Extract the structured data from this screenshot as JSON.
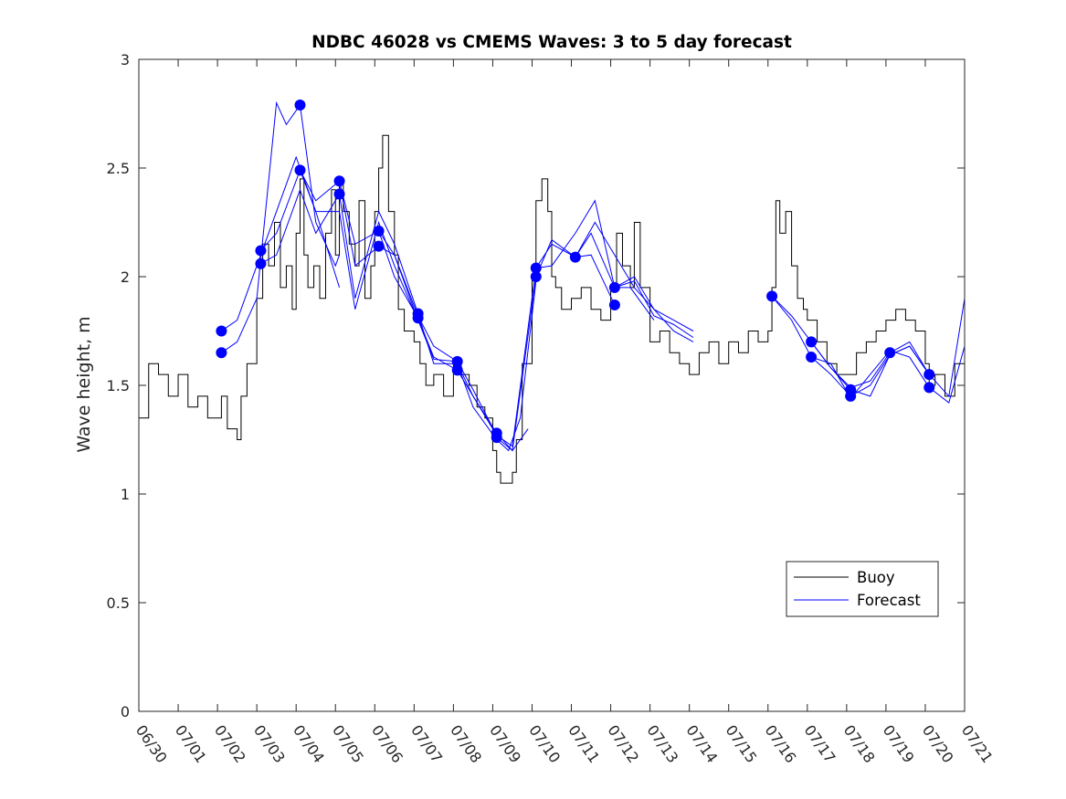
{
  "chart_data": {
    "type": "line",
    "title": "NDBC 46028 vs CMEMS Waves: 3 to 5 day forecast",
    "xlabel": "",
    "ylabel": "Wave height, m",
    "xlim": [
      "06/30",
      "07/21"
    ],
    "ylim": [
      0,
      3
    ],
    "x_ticks": [
      "06/30",
      "07/01",
      "07/02",
      "07/03",
      "07/04",
      "07/05",
      "07/06",
      "07/07",
      "07/08",
      "07/09",
      "07/10",
      "07/11",
      "07/12",
      "07/13",
      "07/14",
      "07/15",
      "07/16",
      "07/17",
      "07/18",
      "07/19",
      "07/20",
      "07/21"
    ],
    "y_ticks": [
      "0",
      "0.5",
      "1",
      "1.5",
      "2",
      "2.5",
      "3"
    ],
    "grid": false,
    "legend_position": "lower-right",
    "colors": {
      "buoy": "#000000",
      "forecast": "#0000ff"
    },
    "series": [
      {
        "name": "Buoy",
        "x_days": [
          0,
          0.25,
          0.5,
          0.75,
          1,
          1.25,
          1.5,
          1.75,
          2,
          2.1,
          2.25,
          2.5,
          2.6,
          2.75,
          3,
          3.15,
          3.3,
          3.45,
          3.6,
          3.75,
          3.9,
          4,
          4.1,
          4.2,
          4.3,
          4.45,
          4.6,
          4.75,
          4.9,
          5,
          5.1,
          5.2,
          5.35,
          5.5,
          5.6,
          5.75,
          5.9,
          6,
          6.1,
          6.2,
          6.35,
          6.5,
          6.6,
          6.75,
          7,
          7.15,
          7.3,
          7.5,
          7.75,
          8,
          8.2,
          8.4,
          8.6,
          8.8,
          9,
          9.1,
          9.2,
          9.35,
          9.5,
          9.6,
          9.75,
          10,
          10.1,
          10.25,
          10.4,
          10.5,
          10.6,
          10.75,
          11,
          11.25,
          11.5,
          11.75,
          12,
          12.15,
          12.3,
          12.5,
          12.6,
          12.75,
          13,
          13.25,
          13.5,
          13.75,
          14,
          14.25,
          14.5,
          14.75,
          15,
          15.25,
          15.5,
          15.75,
          16,
          16.1,
          16.2,
          16.3,
          16.45,
          16.6,
          16.75,
          16.9,
          17,
          17.25,
          17.5,
          17.75,
          18,
          18.25,
          18.5,
          18.75,
          19,
          19.25,
          19.5,
          19.75,
          20,
          20.1,
          20.25,
          20.5,
          20.75,
          21
        ],
        "values": [
          1.35,
          1.6,
          1.55,
          1.45,
          1.55,
          1.4,
          1.45,
          1.35,
          1.35,
          1.45,
          1.3,
          1.25,
          1.45,
          1.6,
          1.9,
          2.15,
          2.05,
          2.25,
          1.95,
          2.05,
          1.85,
          2.2,
          2.45,
          2.1,
          1.95,
          2.05,
          1.9,
          2.2,
          2.4,
          2.1,
          2.45,
          2.3,
          2.15,
          2.05,
          2.35,
          1.9,
          2.05,
          2.3,
          2.5,
          2.65,
          2.3,
          2.1,
          1.85,
          1.75,
          1.7,
          1.6,
          1.5,
          1.55,
          1.45,
          1.6,
          1.55,
          1.5,
          1.4,
          1.35,
          1.2,
          1.1,
          1.05,
          1.05,
          1.1,
          1.25,
          1.6,
          2.0,
          2.35,
          2.45,
          2.3,
          2.0,
          1.95,
          1.85,
          1.9,
          1.95,
          1.85,
          1.8,
          1.95,
          2.2,
          2.05,
          1.95,
          2.25,
          1.95,
          1.7,
          1.75,
          1.65,
          1.6,
          1.55,
          1.65,
          1.7,
          1.6,
          1.7,
          1.65,
          1.75,
          1.7,
          1.75,
          1.95,
          2.35,
          2.2,
          2.3,
          2.05,
          1.9,
          1.85,
          1.8,
          1.7,
          1.6,
          1.55,
          1.55,
          1.65,
          1.7,
          1.75,
          1.8,
          1.85,
          1.8,
          1.75,
          1.6,
          1.5,
          1.55,
          1.45,
          1.6,
          1.6
        ]
      },
      {
        "name": "Forecast",
        "runs": [
          {
            "x_days": [
              2.1,
              2.5,
              3,
              3.5,
              4,
              4.5,
              5.1
            ],
            "values": [
              1.75,
              1.8,
              2.05,
              2.3,
              2.55,
              2.3,
              1.95
            ]
          },
          {
            "x_days": [
              2.1,
              2.5,
              3,
              3.5,
              3.75,
              4.1,
              4.5,
              5,
              5.1
            ],
            "values": [
              1.65,
              1.7,
              1.9,
              2.8,
              2.7,
              2.79,
              2.25,
              2.05,
              2.1
            ]
          },
          {
            "x_days": [
              3.1,
              3.5,
              4.1,
              4.5,
              5.1,
              5.5,
              6.1,
              6.5,
              7.1
            ],
            "values": [
              2.12,
              2.2,
              2.49,
              2.35,
              2.44,
              2.15,
              2.21,
              2.1,
              1.8
            ]
          },
          {
            "x_days": [
              3.1,
              3.5,
              4.1,
              4.5,
              5.1,
              5.5,
              6.1,
              6.5,
              7.1
            ],
            "values": [
              2.06,
              2.1,
              2.4,
              2.2,
              2.38,
              1.9,
              2.3,
              2.15,
              1.83
            ]
          },
          {
            "x_days": [
              4.1,
              4.5,
              5.1,
              5.5,
              6.1,
              6.5,
              7.1,
              7.5,
              8.1
            ],
            "values": [
              2.49,
              2.3,
              2.3,
              1.85,
              2.25,
              2.05,
              1.8,
              1.62,
              1.61
            ]
          },
          {
            "x_days": [
              5.1,
              5.5,
              6.1,
              6.5,
              7.1,
              7.5,
              8.1,
              8.5,
              9.1
            ],
            "values": [
              2.44,
              2.05,
              2.14,
              2.1,
              1.82,
              1.68,
              1.61,
              1.48,
              1.27
            ]
          },
          {
            "x_days": [
              6.1,
              6.5,
              7.1,
              7.5,
              8.1,
              8.5,
              9.1,
              9.5,
              9.9
            ],
            "values": [
              2.21,
              2.0,
              1.81,
              1.63,
              1.57,
              1.45,
              1.28,
              1.2,
              1.3
            ]
          },
          {
            "x_days": [
              7.1,
              7.5,
              8.1,
              8.5,
              9.1,
              9.4,
              9.7,
              10.1
            ],
            "values": [
              1.83,
              1.6,
              1.6,
              1.4,
              1.25,
              1.2,
              1.35,
              1.98
            ]
          },
          {
            "x_days": [
              8.1,
              8.5,
              9.1,
              9.5,
              10.1,
              10.5,
              11.1,
              11.5,
              12.1
            ],
            "values": [
              1.6,
              1.45,
              1.27,
              1.22,
              2.04,
              2.15,
              2.09,
              2.1,
              1.87
            ]
          },
          {
            "x_days": [
              9.1,
              9.5,
              10.1,
              10.5,
              11.1,
              11.5,
              12.1,
              12.5,
              13.1
            ],
            "values": [
              1.26,
              1.2,
              2.0,
              2.17,
              2.09,
              2.2,
              1.95,
              1.95,
              1.8
            ]
          },
          {
            "x_days": [
              10.1,
              10.5,
              11.1,
              11.6,
              12.1,
              12.6,
              13.1,
              13.6,
              14.1
            ],
            "values": [
              2.04,
              2.05,
              2.2,
              2.35,
              1.95,
              1.98,
              1.82,
              1.78,
              1.72
            ]
          },
          {
            "x_days": [
              11.1,
              11.6,
              12.1,
              12.6,
              13.1,
              13.6,
              14.1
            ],
            "values": [
              2.09,
              2.25,
              2.1,
              1.95,
              1.85,
              1.75,
              1.7
            ]
          },
          {
            "x_days": [
              12.1,
              12.6,
              13.1,
              13.6,
              14.1
            ],
            "values": [
              1.95,
              2.0,
              1.85,
              1.8,
              1.75
            ]
          },
          {
            "x_days": [
              16.1,
              16.6,
              17.1,
              17.6,
              18.1,
              18.6,
              19.1,
              19.6,
              20.1
            ],
            "values": [
              1.91,
              1.82,
              1.7,
              1.58,
              1.49,
              1.52,
              1.65,
              1.7,
              1.55
            ]
          },
          {
            "x_days": [
              16.1,
              16.6,
              17.1,
              17.6,
              18.1,
              18.6,
              19.1,
              19.6,
              20.1
            ],
            "values": [
              1.91,
              1.8,
              1.63,
              1.55,
              1.45,
              1.5,
              1.64,
              1.68,
              1.55
            ]
          },
          {
            "x_days": [
              17.1,
              17.6,
              18.1,
              18.6,
              19.1,
              19.6,
              20.1,
              20.6,
              21
            ],
            "values": [
              1.7,
              1.58,
              1.48,
              1.45,
              1.64,
              1.68,
              1.55,
              1.45,
              1.9
            ]
          },
          {
            "x_days": [
              17.1,
              17.6,
              18.1,
              18.6,
              19.1,
              19.6,
              20.1,
              20.6,
              21
            ],
            "values": [
              1.63,
              1.6,
              1.44,
              1.55,
              1.66,
              1.63,
              1.49,
              1.42,
              1.68
            ]
          }
        ],
        "markers": [
          {
            "x_day": 2.1,
            "value": 1.75
          },
          {
            "x_day": 2.1,
            "value": 1.65
          },
          {
            "x_day": 3.1,
            "value": 2.12
          },
          {
            "x_day": 3.1,
            "value": 2.06
          },
          {
            "x_day": 4.1,
            "value": 2.79
          },
          {
            "x_day": 4.1,
            "value": 2.49
          },
          {
            "x_day": 5.1,
            "value": 2.44
          },
          {
            "x_day": 5.1,
            "value": 2.38
          },
          {
            "x_day": 6.1,
            "value": 2.21
          },
          {
            "x_day": 6.1,
            "value": 2.14
          },
          {
            "x_day": 7.1,
            "value": 1.83
          },
          {
            "x_day": 7.1,
            "value": 1.81
          },
          {
            "x_day": 8.1,
            "value": 1.61
          },
          {
            "x_day": 8.1,
            "value": 1.57
          },
          {
            "x_day": 9.1,
            "value": 1.28
          },
          {
            "x_day": 9.1,
            "value": 1.26
          },
          {
            "x_day": 10.1,
            "value": 2.04
          },
          {
            "x_day": 10.1,
            "value": 2.0
          },
          {
            "x_day": 11.1,
            "value": 2.09
          },
          {
            "x_day": 12.1,
            "value": 1.95
          },
          {
            "x_day": 12.1,
            "value": 1.87
          },
          {
            "x_day": 16.1,
            "value": 1.91
          },
          {
            "x_day": 17.1,
            "value": 1.7
          },
          {
            "x_day": 17.1,
            "value": 1.63
          },
          {
            "x_day": 18.1,
            "value": 1.48
          },
          {
            "x_day": 18.1,
            "value": 1.45
          },
          {
            "x_day": 19.1,
            "value": 1.65
          },
          {
            "x_day": 20.1,
            "value": 1.55
          },
          {
            "x_day": 20.1,
            "value": 1.49
          }
        ]
      }
    ]
  }
}
